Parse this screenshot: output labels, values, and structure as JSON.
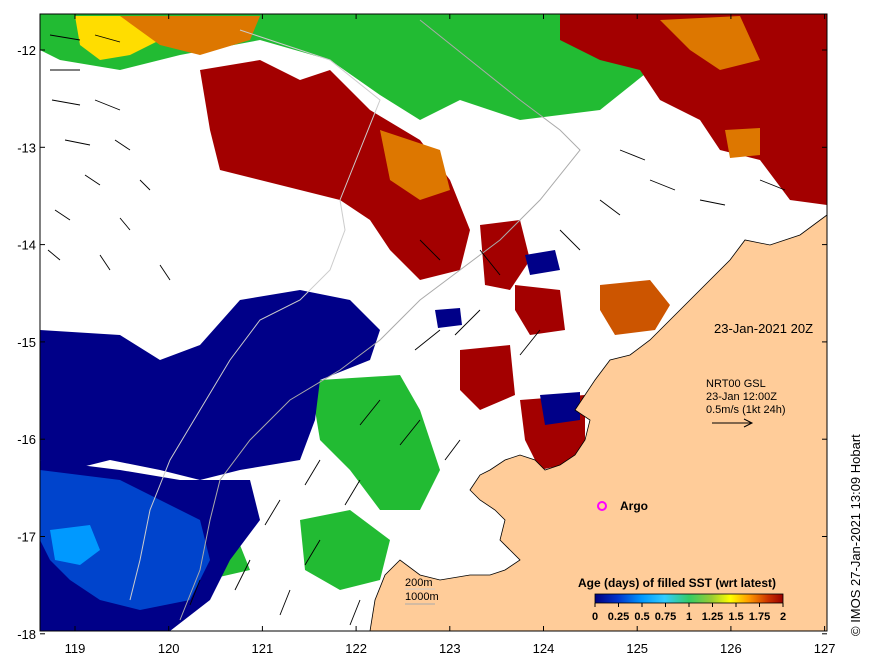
{
  "map": {
    "timestamp_label": "23-Jan-2021 20Z",
    "current_info": [
      "NRT00 GSL",
      "23-Jan 12:00Z",
      "0.5m/s (1kt 24h)"
    ],
    "argo_label": "Argo",
    "contour_labels": [
      "200m",
      "1000m"
    ],
    "colorbar": {
      "title": "Age (days) of filled SST (wrt latest)",
      "tick_labels": [
        "0",
        "0.25",
        "0.5",
        "0.75",
        "1",
        "1.25",
        "1.5",
        "1.75",
        "2"
      ],
      "colors": [
        "#00007f",
        "#0033cc",
        "#0099ff",
        "#33ccff",
        "#33cc66",
        "#99cc33",
        "#ffff00",
        "#ff9900",
        "#cc3300",
        "#990000"
      ]
    },
    "credit": "© IMOS 27-Jan-2021 13:09 Hobart",
    "x_ticks": [
      "119",
      "120",
      "121",
      "122",
      "123",
      "124",
      "125",
      "126",
      "127"
    ],
    "y_ticks": [
      "-12",
      "-13",
      "-14",
      "-15",
      "-16",
      "-17",
      "-18"
    ],
    "colors": {
      "land": "#ffcc99",
      "old_sst": "#a30000",
      "mid_sst": "#22bb33",
      "new_sst": "#000088",
      "blue_sst": "#0044cc",
      "orange_sst": "#dd7700",
      "yellow_sst": "#ffdd00",
      "argo": "#ff00ff"
    }
  }
}
